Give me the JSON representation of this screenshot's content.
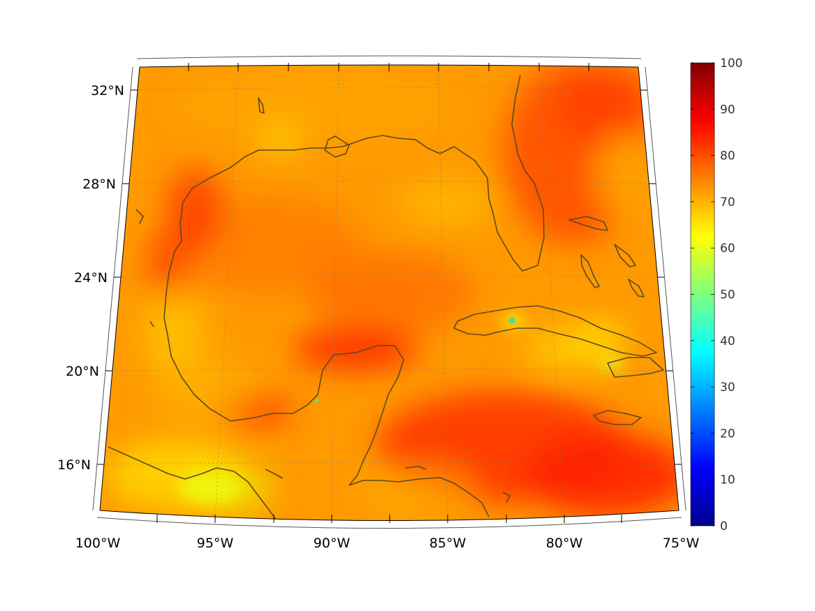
{
  "map": {
    "projection": "lambert-conic",
    "lat_labels": [
      "32°N",
      "28°N",
      "24°N",
      "20°N",
      "16°N"
    ],
    "lon_labels": [
      "100°W",
      "95°W",
      "90°W",
      "85°W",
      "80°W",
      "75°W"
    ],
    "lat_values": [
      32,
      28,
      24,
      20,
      16
    ],
    "lon_values": [
      -100,
      -95,
      -90,
      -85,
      -80,
      -75
    ],
    "colormap": "jet",
    "coastline_color": "#5b4a1e",
    "field_dominant_colors": [
      "#ff8c00",
      "#ff5a00",
      "#ffc400",
      "#e8ff00"
    ]
  },
  "colorbar": {
    "min": 0,
    "max": 100,
    "ticks": [
      "0",
      "10",
      "20",
      "30",
      "40",
      "50",
      "60",
      "70",
      "80",
      "90",
      "100"
    ]
  }
}
